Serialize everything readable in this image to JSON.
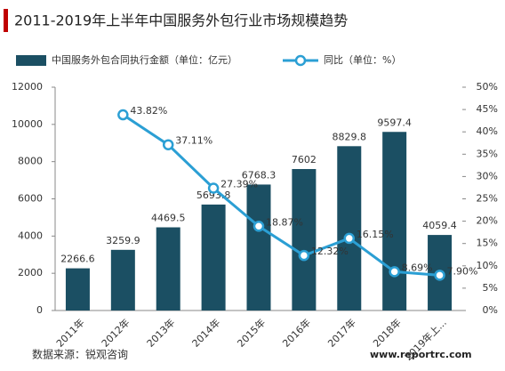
{
  "chart_data": {
    "type": "bar",
    "title": "2011-2019年上半年中国服务外包行业市场规模趋势",
    "categories": [
      "2011年",
      "2012年",
      "2013年",
      "2014年",
      "2015年",
      "2016年",
      "2017年",
      "2018年",
      "2019年上..."
    ],
    "series": [
      {
        "name": "中国服务外包合同执行金额（单位：亿元）",
        "type": "bar",
        "color": "#1b4f63",
        "values": [
          2266.6,
          3259.9,
          4469.5,
          5693.8,
          6768.3,
          7602,
          8829.8,
          9597.4,
          4059.4
        ]
      },
      {
        "name": "同比（单位：%）",
        "type": "line",
        "axis": "y2",
        "color": "#2b9fd4",
        "values": [
          null,
          43.82,
          37.11,
          27.39,
          18.87,
          12.32,
          16.15,
          8.69,
          7.9
        ],
        "value_labels": [
          null,
          "43.82%",
          "37.11%",
          "27.39%",
          "18.87%",
          "12.32%",
          "16.15%",
          "8.69%",
          "7.90%"
        ]
      }
    ],
    "ylim": [
      0,
      12000
    ],
    "yticks": [
      0,
      2000,
      4000,
      6000,
      8000,
      10000,
      12000
    ],
    "y2lim": [
      0,
      50
    ],
    "y2ticks": [
      {
        "value": 0,
        "label": "0%"
      },
      {
        "value": 5,
        "label": "5%"
      },
      {
        "value": 10,
        "label": "10%"
      },
      {
        "value": 15,
        "label": "15%"
      },
      {
        "value": 20,
        "label": "20%"
      },
      {
        "value": 25,
        "label": "25%"
      },
      {
        "value": 30,
        "label": "30%"
      },
      {
        "value": 35,
        "label": "35%"
      },
      {
        "value": 40,
        "label": "40%"
      },
      {
        "value": 45,
        "label": "45%"
      },
      {
        "value": 50,
        "label": "50%"
      }
    ],
    "legend": "top",
    "source": "数据来源：锐观咨询",
    "watermark": "www.reportrc.com"
  }
}
